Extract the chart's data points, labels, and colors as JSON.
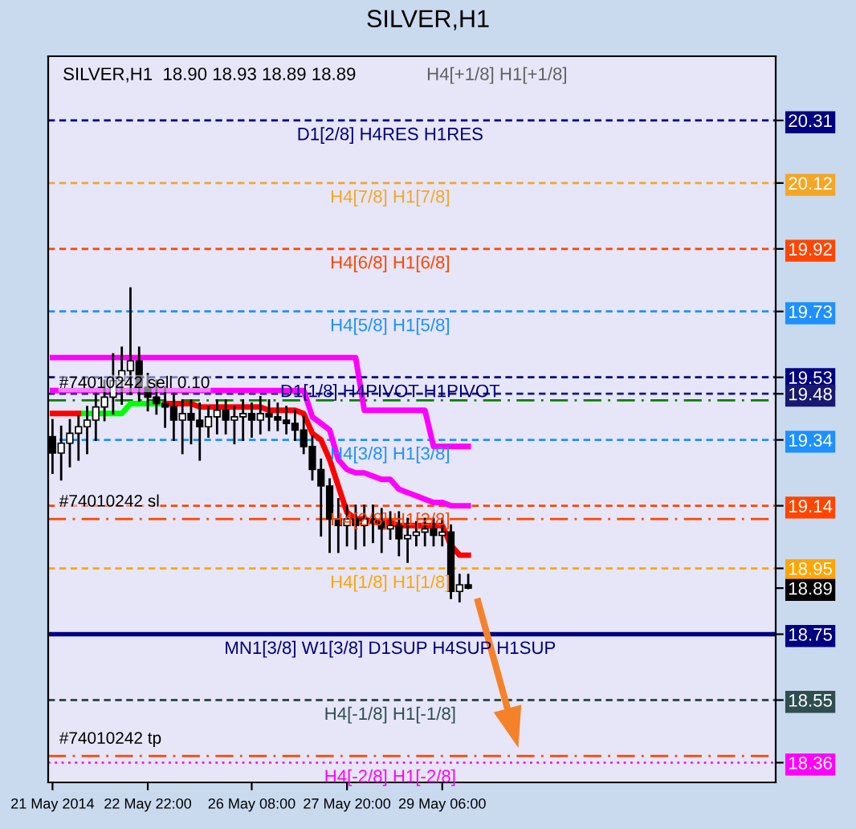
{
  "chart_data": {
    "type": "candlestick",
    "title": "SILVER,H1",
    "subtitle": "SILVER,H1  18.90 18.93 18.89 18.89",
    "categories": [
      "21 May 2014",
      null,
      null,
      null,
      null,
      null,
      null,
      null,
      null,
      null,
      null,
      "22 May 22:00",
      null,
      null,
      null,
      null,
      null,
      null,
      null,
      null,
      null,
      null,
      null,
      "26 May 08:00",
      null,
      null,
      null,
      null,
      null,
      null,
      null,
      null,
      null,
      null,
      "27 May 20:00",
      null,
      null,
      null,
      null,
      null,
      null,
      null,
      null,
      null,
      null,
      "29 May 06:00",
      null,
      null,
      null,
      null,
      null,
      null,
      null,
      null,
      null,
      null,
      null,
      null,
      null,
      null,
      null,
      null,
      null,
      null,
      null,
      null,
      null,
      null,
      null,
      null,
      null,
      null,
      null,
      null,
      null,
      null,
      null,
      null,
      null,
      null,
      null,
      null,
      null,
      null
    ],
    "ohlc": [
      [
        19.35,
        19.4,
        19.24,
        19.3
      ],
      [
        19.3,
        19.38,
        19.22,
        19.33
      ],
      [
        19.33,
        19.4,
        19.26,
        19.36
      ],
      [
        19.36,
        19.41,
        19.28,
        19.38
      ],
      [
        19.38,
        19.44,
        19.3,
        19.4
      ],
      [
        19.4,
        19.48,
        19.34,
        19.44
      ],
      [
        19.44,
        19.52,
        19.4,
        19.47
      ],
      [
        19.47,
        19.6,
        19.42,
        19.52
      ],
      [
        19.52,
        19.62,
        19.45,
        19.55
      ],
      [
        19.55,
        19.8,
        19.48,
        19.58
      ],
      [
        19.58,
        19.62,
        19.46,
        19.5
      ],
      [
        19.5,
        19.54,
        19.43,
        19.47
      ],
      [
        19.47,
        19.52,
        19.42,
        19.45
      ],
      [
        19.45,
        19.5,
        19.38,
        19.44
      ],
      [
        19.44,
        19.48,
        19.34,
        19.4
      ],
      [
        19.4,
        19.46,
        19.3,
        19.42
      ],
      [
        19.42,
        19.46,
        19.33,
        19.4
      ],
      [
        19.4,
        19.45,
        19.28,
        19.38
      ],
      [
        19.38,
        19.44,
        19.35,
        19.41
      ],
      [
        19.41,
        19.46,
        19.36,
        19.43
      ],
      [
        19.43,
        19.46,
        19.36,
        19.4
      ],
      [
        19.4,
        19.44,
        19.33,
        19.41
      ],
      [
        19.41,
        19.46,
        19.34,
        19.42
      ],
      [
        19.42,
        19.45,
        19.35,
        19.4
      ],
      [
        19.4,
        19.47,
        19.36,
        19.42
      ],
      [
        19.42,
        19.46,
        19.37,
        19.41
      ],
      [
        19.41,
        19.45,
        19.37,
        19.4
      ],
      [
        19.4,
        19.44,
        19.36,
        19.39
      ],
      [
        19.39,
        19.43,
        19.34,
        19.37
      ],
      [
        19.37,
        19.41,
        19.3,
        19.32
      ],
      [
        19.32,
        19.35,
        19.22,
        19.25
      ],
      [
        19.25,
        19.28,
        19.05,
        19.2
      ],
      [
        19.2,
        19.22,
        19.0,
        19.1
      ],
      [
        19.1,
        19.16,
        19.0,
        19.08
      ],
      [
        19.08,
        19.14,
        19.02,
        19.1
      ],
      [
        19.1,
        19.14,
        19.01,
        19.08
      ],
      [
        19.08,
        19.14,
        19.02,
        19.1
      ],
      [
        19.1,
        19.14,
        19.03,
        19.09
      ],
      [
        19.09,
        19.13,
        19.0,
        19.07
      ],
      [
        19.07,
        19.12,
        19.04,
        19.08
      ],
      [
        19.08,
        19.12,
        18.99,
        19.04
      ],
      [
        19.04,
        19.1,
        18.97,
        19.05
      ],
      [
        19.05,
        19.09,
        19.02,
        19.06
      ],
      [
        19.06,
        19.1,
        19.02,
        19.07
      ],
      [
        19.07,
        19.1,
        19.02,
        19.05
      ],
      [
        19.05,
        19.1,
        19.02,
        19.06
      ],
      [
        19.06,
        19.08,
        18.86,
        18.88
      ],
      [
        18.88,
        18.93,
        18.85,
        18.9
      ],
      [
        18.9,
        18.93,
        18.89,
        18.89
      ],
      null,
      null,
      null,
      null,
      null,
      null,
      null,
      null,
      null,
      null,
      null,
      null,
      null,
      null,
      null,
      null,
      null,
      null,
      null,
      null,
      null,
      null,
      null,
      null,
      null,
      null,
      null,
      null,
      null,
      null,
      null,
      null,
      null,
      null,
      null
    ],
    "series": [
      {
        "type": "line",
        "color": "#ff00ff",
        "values": [
          19.59,
          19.59,
          19.59,
          19.59,
          19.59,
          19.59,
          19.59,
          19.59,
          19.59,
          19.59,
          19.59,
          19.59,
          19.59,
          19.59,
          19.59,
          19.59,
          19.59,
          19.59,
          19.59,
          19.59,
          19.59,
          19.59,
          19.59,
          19.59,
          19.59,
          19.59,
          19.59,
          19.59,
          19.59,
          19.59,
          19.59,
          19.59,
          19.59,
          19.59,
          19.59,
          19.59,
          19.43,
          19.43,
          19.43,
          19.43,
          19.43,
          19.43,
          19.43,
          19.43,
          19.32,
          19.32,
          19.32,
          19.32,
          19.32,
          null,
          null,
          null,
          null,
          null,
          null,
          null,
          null,
          null,
          null,
          null,
          null,
          null,
          null,
          null,
          null,
          null,
          null,
          null,
          null,
          null,
          null,
          null,
          null,
          null,
          null,
          null,
          null,
          null,
          null,
          null,
          null,
          null,
          null,
          null
        ]
      },
      {
        "type": "line",
        "color": "#ff00ff",
        "values": [
          19.49,
          19.49,
          19.49,
          19.49,
          19.49,
          19.49,
          19.49,
          19.49,
          19.49,
          19.49,
          19.49,
          19.49,
          19.49,
          19.49,
          19.49,
          19.49,
          19.49,
          19.49,
          19.49,
          19.49,
          19.49,
          19.49,
          19.49,
          19.49,
          19.49,
          19.49,
          19.49,
          19.49,
          19.49,
          19.49,
          19.41,
          19.39,
          19.37,
          19.28,
          19.25,
          19.24,
          19.24,
          19.23,
          19.22,
          19.22,
          19.19,
          19.18,
          19.17,
          19.16,
          19.15,
          19.15,
          19.14,
          19.14,
          19.14,
          null,
          null,
          null,
          null,
          null,
          null,
          null,
          null,
          null,
          null,
          null,
          null,
          null,
          null,
          null,
          null,
          null,
          null,
          null,
          null,
          null,
          null,
          null,
          null,
          null,
          null,
          null,
          null,
          null,
          null,
          null,
          null,
          null,
          null,
          null
        ]
      },
      {
        "type": "line",
        "color": "#00ff00",
        "values": [
          null,
          null,
          null,
          19.42,
          19.42,
          19.42,
          19.42,
          19.42,
          19.42,
          19.45,
          19.45,
          19.45,
          19.45,
          19.45,
          null,
          null,
          null,
          null,
          null,
          null,
          null,
          null,
          null,
          null,
          null,
          null,
          null,
          null,
          null,
          null,
          null,
          null,
          null,
          null,
          null,
          null,
          null,
          null,
          null,
          null,
          null,
          null,
          null,
          null,
          null,
          null,
          null,
          null,
          null,
          null,
          null,
          null,
          null,
          null,
          null,
          null,
          null,
          null,
          null,
          null,
          null,
          null,
          null,
          null,
          null,
          null,
          null,
          null,
          null,
          null,
          null,
          null,
          null,
          null,
          null,
          null,
          null,
          null,
          null,
          null,
          null,
          null,
          null,
          null
        ]
      },
      {
        "type": "line",
        "color": "#ff0000",
        "values": [
          19.42,
          19.42,
          19.42,
          19.42,
          null,
          null,
          null,
          null,
          null,
          null,
          null,
          null,
          null,
          19.45,
          19.45,
          19.45,
          19.45,
          19.44,
          19.44,
          19.44,
          19.44,
          19.44,
          19.44,
          19.44,
          19.44,
          19.43,
          19.43,
          19.43,
          19.43,
          19.42,
          19.36,
          19.34,
          19.28,
          19.2,
          19.12,
          19.1,
          19.1,
          19.09,
          19.09,
          19.09,
          19.08,
          19.08,
          19.08,
          19.08,
          19.08,
          19.08,
          19.02,
          18.99,
          18.99,
          null,
          null,
          null,
          null,
          null,
          null,
          null,
          null,
          null,
          null,
          null,
          null,
          null,
          null,
          null,
          null,
          null,
          null,
          null,
          null,
          null,
          null,
          null,
          null,
          null,
          null,
          null,
          null,
          null,
          null,
          null,
          null,
          null,
          null,
          null
        ]
      }
    ],
    "ylim": [
      18.3,
      20.505
    ],
    "yticks": [
      20.31,
      20.12,
      19.92,
      19.73,
      19.53,
      19.48,
      19.34,
      19.14,
      18.95,
      18.89,
      18.75,
      18.55,
      18.36
    ],
    "grid": false,
    "ref_lines": [
      {
        "axis": "y",
        "value": 20.31,
        "label": "D1[2/8] H4RES H1RES",
        "color": "#000080",
        "line_style": "dashed"
      },
      {
        "axis": "y",
        "value": 20.12,
        "label": "H4[7/8] H1[7/8]",
        "color": "#f5a623",
        "line_style": "dashed"
      },
      {
        "axis": "y",
        "value": 19.92,
        "label": "H4[6/8] H1[6/8]",
        "color": "#ff4500",
        "line_style": "dashed"
      },
      {
        "axis": "y",
        "value": 19.73,
        "label": "H4[5/8] H1[5/8]",
        "color": "#1e90ff",
        "line_style": "dashed"
      },
      {
        "axis": "y",
        "value": 19.53,
        "label": "D1[1/8] H4PIVOT H1PIVOT",
        "color": "#000080",
        "line_style": "dashed"
      },
      {
        "axis": "y",
        "value": 19.48,
        "color": "#191970",
        "line_style": "dashed"
      },
      {
        "axis": "y",
        "value": 19.46,
        "color": "#008000",
        "line_style": "dashdot"
      },
      {
        "axis": "y",
        "value": 19.34,
        "label": "H4[3/8] H1[3/8]",
        "color": "#1e90ff",
        "line_style": "dashed"
      },
      {
        "axis": "y",
        "value": 19.14,
        "label": "H4[2/8] H1[2/8]",
        "color": "#ff4500",
        "line_style": "dashed"
      },
      {
        "axis": "y",
        "value": 19.1,
        "color": "#ff4500",
        "line_style": "dashdot"
      },
      {
        "axis": "y",
        "value": 18.95,
        "label": "H4[1/8] H1[1/8]",
        "color": "#ffa500",
        "line_style": "dashed"
      },
      {
        "axis": "y",
        "value": 18.75,
        "label": "MN1[3/8] W1[3/8] D1SUP H4SUP H1SUP",
        "color": "#000080",
        "line_style": "solid"
      },
      {
        "axis": "y",
        "value": 18.55,
        "label": "H4[-1/8] H1[-1/8]",
        "color": "#2f4f4f",
        "line_style": "dashed"
      },
      {
        "axis": "y",
        "value": 18.38,
        "color": "#ff4500",
        "line_style": "dashdot"
      },
      {
        "axis": "y",
        "value": 18.36,
        "label": "H4[-2/8] H1[-2/8]",
        "color": "#ff00ff",
        "line_style": "dotted"
      }
    ],
    "annotations": [
      "H4[+1/8] H1[+1/8]",
      {
        "text": "#74010242 sell 0.10",
        "x": "21 May 2014",
        "y": 19.46
      },
      {
        "text": "#74010242 sl",
        "x": "21 May 2014",
        "y": 19.1
      },
      {
        "text": "#74010242 tp",
        "x": "21 May 2014",
        "y": 18.38
      }
    ]
  }
}
